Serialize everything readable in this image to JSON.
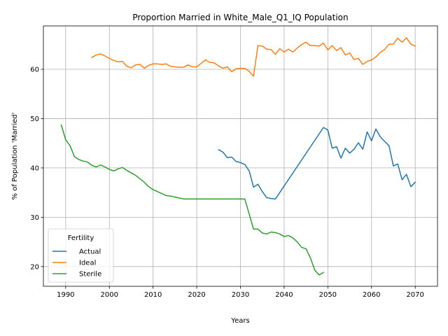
{
  "chart_data": {
    "type": "line",
    "title": "Proportion Married in White_Male_Q1_IQ Population",
    "xlabel": "Years",
    "ylabel": "% of Population 'Married'",
    "xlim": [
      1984.9,
      2075.1
    ],
    "ylim": [
      16.0,
      68.8
    ],
    "xticks": [
      1990,
      2000,
      2010,
      2020,
      2030,
      2040,
      2050,
      2060,
      2070
    ],
    "yticks": [
      20,
      30,
      40,
      50,
      60
    ],
    "grid": true,
    "legend": {
      "title": "Fertility",
      "position": "lower-left"
    },
    "series": [
      {
        "name": "Actual",
        "color": "#1f77b4",
        "points": [
          [
            2025,
            43.7
          ],
          [
            2026,
            43.2
          ],
          [
            2027,
            42.1
          ],
          [
            2028,
            42.2
          ],
          [
            2029,
            41.3
          ],
          [
            2030,
            41.1
          ],
          [
            2031,
            40.7
          ],
          [
            2032,
            39.4
          ],
          [
            2033,
            36.1
          ],
          [
            2034,
            36.7
          ],
          [
            2035,
            35.2
          ],
          [
            2036,
            34.0
          ],
          [
            2037,
            33.8
          ],
          [
            2038,
            33.7
          ],
          [
            2049,
            48.2
          ],
          [
            2050,
            47.7
          ],
          [
            2051,
            44.0
          ],
          [
            2052,
            44.3
          ],
          [
            2053,
            42.0
          ],
          [
            2054,
            44.0
          ],
          [
            2055,
            43.0
          ],
          [
            2056,
            43.8
          ],
          [
            2057,
            45.1
          ],
          [
            2058,
            43.8
          ],
          [
            2059,
            47.3
          ],
          [
            2060,
            45.5
          ],
          [
            2061,
            47.9
          ],
          [
            2062,
            46.3
          ],
          [
            2063,
            45.4
          ],
          [
            2064,
            44.5
          ],
          [
            2065,
            40.4
          ],
          [
            2066,
            40.8
          ],
          [
            2067,
            37.6
          ],
          [
            2068,
            38.7
          ],
          [
            2069,
            36.2
          ],
          [
            2070,
            37.1
          ]
        ]
      },
      {
        "name": "Ideal",
        "color": "#ff7f0e",
        "points": [
          [
            1996,
            62.4
          ],
          [
            1997,
            62.9
          ],
          [
            1998,
            63.1
          ],
          [
            1999,
            62.7
          ],
          [
            2000,
            62.2
          ],
          [
            2001,
            61.8
          ],
          [
            2002,
            61.5
          ],
          [
            2003,
            61.6
          ],
          [
            2004,
            60.6
          ],
          [
            2005,
            60.3
          ],
          [
            2006,
            60.9
          ],
          [
            2007,
            61.0
          ],
          [
            2008,
            60.2
          ],
          [
            2009,
            60.8
          ],
          [
            2010,
            61.1
          ],
          [
            2011,
            61.1
          ],
          [
            2012,
            61.0
          ],
          [
            2013,
            61.1
          ],
          [
            2014,
            60.6
          ],
          [
            2015,
            60.5
          ],
          [
            2016,
            60.4
          ],
          [
            2017,
            60.4
          ],
          [
            2018,
            60.9
          ],
          [
            2019,
            60.5
          ],
          [
            2020,
            60.5
          ],
          [
            2021,
            61.2
          ],
          [
            2022,
            61.9
          ],
          [
            2023,
            61.4
          ],
          [
            2024,
            61.3
          ],
          [
            2025,
            60.7
          ],
          [
            2026,
            60.2
          ],
          [
            2027,
            60.5
          ],
          [
            2028,
            59.5
          ],
          [
            2029,
            60.1
          ],
          [
            2030,
            60.2
          ],
          [
            2031,
            60.2
          ],
          [
            2032,
            59.6
          ],
          [
            2033,
            58.6
          ],
          [
            2034,
            64.8
          ],
          [
            2035,
            64.7
          ],
          [
            2036,
            64.1
          ],
          [
            2037,
            64.0
          ],
          [
            2038,
            63.0
          ],
          [
            2039,
            64.2
          ],
          [
            2040,
            63.5
          ],
          [
            2041,
            64.1
          ],
          [
            2042,
            63.5
          ],
          [
            2043,
            64.3
          ],
          [
            2044,
            65.0
          ],
          [
            2045,
            65.5
          ],
          [
            2046,
            64.8
          ],
          [
            2047,
            64.8
          ],
          [
            2048,
            64.7
          ],
          [
            2049,
            65.3
          ],
          [
            2050,
            63.9
          ],
          [
            2051,
            64.8
          ],
          [
            2052,
            63.8
          ],
          [
            2053,
            64.4
          ],
          [
            2054,
            62.9
          ],
          [
            2055,
            63.3
          ],
          [
            2056,
            62.0
          ],
          [
            2057,
            62.2
          ],
          [
            2058,
            61.0
          ],
          [
            2059,
            61.6
          ],
          [
            2060,
            61.9
          ],
          [
            2061,
            62.5
          ],
          [
            2062,
            63.4
          ],
          [
            2063,
            64.0
          ],
          [
            2064,
            65.1
          ],
          [
            2065,
            65.1
          ],
          [
            2066,
            66.3
          ],
          [
            2067,
            65.5
          ],
          [
            2068,
            66.4
          ],
          [
            2069,
            65.1
          ],
          [
            2070,
            64.7
          ]
        ]
      },
      {
        "name": "Sterile",
        "color": "#2ca02c",
        "points": [
          [
            1989,
            48.7
          ],
          [
            1990,
            45.7
          ],
          [
            1991,
            44.5
          ],
          [
            1992,
            42.3
          ],
          [
            1993,
            41.7
          ],
          [
            1994,
            41.4
          ],
          [
            1995,
            41.2
          ],
          [
            1996,
            40.5
          ],
          [
            1997,
            40.2
          ],
          [
            1998,
            40.6
          ],
          [
            1999,
            40.2
          ],
          [
            2000,
            39.7
          ],
          [
            2001,
            39.4
          ],
          [
            2002,
            39.8
          ],
          [
            2003,
            40.1
          ],
          [
            2004,
            39.5
          ],
          [
            2005,
            39.0
          ],
          [
            2006,
            38.5
          ],
          [
            2007,
            37.8
          ],
          [
            2008,
            37.1
          ],
          [
            2009,
            36.2
          ],
          [
            2010,
            35.6
          ],
          [
            2011,
            35.2
          ],
          [
            2012,
            34.8
          ],
          [
            2013,
            34.4
          ],
          [
            2014,
            34.3
          ],
          [
            2015,
            34.1
          ],
          [
            2016,
            33.9
          ],
          [
            2017,
            33.7
          ],
          [
            2030,
            33.7
          ],
          [
            2031,
            33.7
          ],
          [
            2033,
            27.6
          ],
          [
            2034,
            27.6
          ],
          [
            2035,
            26.8
          ],
          [
            2036,
            26.6
          ],
          [
            2037,
            27.0
          ],
          [
            2038,
            26.9
          ],
          [
            2039,
            26.6
          ],
          [
            2040,
            26.1
          ],
          [
            2041,
            26.3
          ],
          [
            2042,
            25.8
          ],
          [
            2043,
            25.0
          ],
          [
            2044,
            23.9
          ],
          [
            2045,
            23.6
          ],
          [
            2046,
            21.8
          ],
          [
            2047,
            19.3
          ],
          [
            2048,
            18.3
          ],
          [
            2049,
            18.8
          ]
        ]
      }
    ]
  }
}
